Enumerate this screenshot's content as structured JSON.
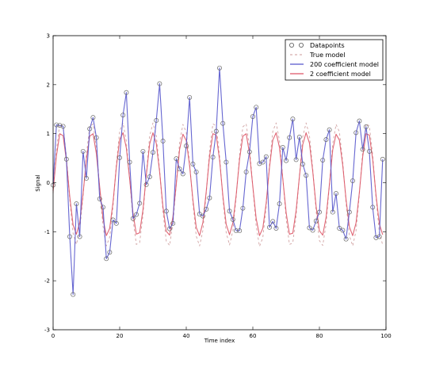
{
  "chart_data": {
    "type": "line",
    "title": "",
    "xlabel": "Time index",
    "ylabel": "Signal",
    "xlim": [
      0,
      100
    ],
    "ylim": [
      -3,
      3
    ],
    "xticks": [
      0,
      20,
      40,
      60,
      80,
      100
    ],
    "yticks": [
      -3,
      -2,
      -1,
      0,
      1,
      2,
      3
    ],
    "grid": false,
    "legend_position": "top-right",
    "colors": {
      "datapoints": "#666666",
      "true_model": "#cc9999",
      "coef200": "#5555cc",
      "coef2": "#dd5566"
    },
    "series": [
      {
        "name": "Datapoints",
        "style": "markers",
        "x": [
          0,
          1,
          2,
          3,
          4,
          5,
          6,
          7,
          8,
          9,
          10,
          11,
          12,
          13,
          14,
          15,
          16,
          17,
          18,
          19,
          20,
          21,
          22,
          23,
          24,
          25,
          26,
          27,
          28,
          29,
          30,
          31,
          32,
          33,
          34,
          35,
          36,
          37,
          38,
          39,
          40,
          41,
          42,
          43,
          44,
          45,
          46,
          47,
          48,
          49,
          50,
          51,
          52,
          53,
          54,
          55,
          56,
          57,
          58,
          59,
          60,
          61,
          62,
          63,
          64,
          65,
          66,
          67,
          68,
          69,
          70,
          71,
          72,
          73,
          74,
          75,
          76,
          77,
          78,
          79,
          80,
          81,
          82,
          83,
          84,
          85,
          86,
          87,
          88,
          89,
          90,
          91,
          92,
          93,
          94,
          95,
          96,
          97,
          98,
          99
        ],
        "y": [
          -0.05,
          1.18,
          1.17,
          1.15,
          0.48,
          -1.1,
          -2.28,
          -0.43,
          -1.1,
          0.64,
          0.09,
          1.1,
          1.33,
          0.92,
          -0.33,
          -0.5,
          -1.55,
          -1.42,
          -0.76,
          -0.83,
          0.51,
          1.38,
          1.84,
          0.42,
          -0.73,
          -0.65,
          -0.42,
          0.64,
          -0.04,
          0.12,
          0.62,
          1.27,
          2.02,
          0.85,
          -0.58,
          -0.94,
          -0.83,
          0.49,
          0.28,
          0.18,
          0.75,
          1.74,
          0.38,
          0.22,
          -0.64,
          -0.68,
          -0.54,
          -0.31,
          0.52,
          1.05,
          2.34,
          1.21,
          0.42,
          -0.58,
          -0.75,
          -0.98,
          -0.98,
          -0.52,
          0.22,
          0.63,
          1.35,
          1.54,
          0.39,
          0.42,
          0.53,
          -0.91,
          -0.79,
          -0.93,
          -0.43,
          0.72,
          0.45,
          0.92,
          1.3,
          0.47,
          0.93,
          0.38,
          0.15,
          -0.92,
          -0.97,
          -0.78,
          -0.6,
          0.46,
          0.88,
          1.08,
          -0.6,
          -0.22,
          -0.93,
          -0.97,
          -1.15,
          -0.6,
          0.04,
          1.02,
          1.26,
          0.68,
          1.14,
          0.64,
          -0.5,
          -1.12,
          -1.1,
          0.48
        ]
      },
      {
        "name": "True model",
        "style": "dashed",
        "x": [
          0,
          1,
          2,
          3,
          4,
          5,
          6,
          7,
          8,
          9,
          10,
          11,
          12,
          13,
          14,
          15,
          16,
          17,
          18,
          19,
          20,
          21,
          22,
          23,
          24,
          25,
          26,
          27,
          28,
          29,
          30,
          31,
          32,
          33,
          34,
          35,
          36,
          37,
          38,
          39,
          40,
          41,
          42,
          43,
          44,
          45,
          46,
          47,
          48,
          49,
          50,
          51,
          52,
          53,
          54,
          55,
          56,
          57,
          58,
          59,
          60,
          61,
          62,
          63,
          64,
          65,
          66,
          67,
          68,
          69,
          70,
          71,
          72,
          73,
          74,
          75,
          76,
          77,
          78,
          79,
          80,
          81,
          82,
          83,
          84,
          85,
          86,
          87,
          88,
          89,
          90,
          91,
          92,
          93,
          94,
          95,
          96,
          97,
          98,
          99
        ],
        "y": [
          -0.22,
          0.66,
          1.2,
          1.15,
          0.54,
          -0.34,
          -1.03,
          -1.26,
          -0.97,
          -0.28,
          0.57,
          1.14,
          1.2,
          0.71,
          -0.11,
          -0.89,
          -1.29,
          -1.11,
          -0.48,
          0.38,
          1.06,
          1.22,
          0.85,
          0.08,
          -0.74,
          -1.26,
          -1.22,
          -0.66,
          0.18,
          0.95,
          1.22,
          0.96,
          0.26,
          -0.59,
          -1.19,
          -1.28,
          -0.83,
          -0.03,
          0.82,
          1.19,
          1.03,
          0.42,
          -0.42,
          -1.09,
          -1.29,
          -0.97,
          -0.22,
          0.65,
          1.2,
          1.16,
          0.56,
          -0.32,
          -1.02,
          -1.27,
          -0.98,
          -0.3,
          0.56,
          1.14,
          1.2,
          0.72,
          -0.09,
          -0.88,
          -1.3,
          -1.12,
          -0.5,
          0.37,
          1.05,
          1.22,
          0.86,
          0.1,
          -0.73,
          -1.26,
          -1.23,
          -0.68,
          0.16,
          0.94,
          1.22,
          0.97,
          0.28,
          -0.57,
          -1.18,
          -1.28,
          -0.85,
          -0.05,
          0.8,
          1.19,
          1.04,
          0.43,
          -0.41,
          -1.08,
          -1.29,
          -0.98,
          -0.24,
          0.64,
          1.2,
          1.16,
          0.57,
          -0.3,
          -1.01,
          -1.27
        ]
      },
      {
        "name": "200 coefficient model",
        "style": "solid",
        "x": [
          0,
          1,
          2,
          3,
          4,
          5,
          6,
          7,
          8,
          9,
          10,
          11,
          12,
          13,
          14,
          15,
          16,
          17,
          18,
          19,
          20,
          21,
          22,
          23,
          24,
          25,
          26,
          27,
          28,
          29,
          30,
          31,
          32,
          33,
          34,
          35,
          36,
          37,
          38,
          39,
          40,
          41,
          42,
          43,
          44,
          45,
          46,
          47,
          48,
          49,
          50,
          51,
          52,
          53,
          54,
          55,
          56,
          57,
          58,
          59,
          60,
          61,
          62,
          63,
          64,
          65,
          66,
          67,
          68,
          69,
          70,
          71,
          72,
          73,
          74,
          75,
          76,
          77,
          78,
          79,
          80,
          81,
          82,
          83,
          84,
          85,
          86,
          87,
          88,
          89,
          90,
          91,
          92,
          93,
          94,
          95,
          96,
          97,
          98,
          99
        ],
        "y": [
          -0.05,
          1.18,
          1.17,
          1.15,
          0.48,
          -1.1,
          -2.28,
          -0.43,
          -1.1,
          0.64,
          0.09,
          1.1,
          1.33,
          0.92,
          -0.33,
          -0.5,
          -1.55,
          -1.42,
          -0.76,
          -0.83,
          0.51,
          1.38,
          1.84,
          0.42,
          -0.73,
          -0.65,
          -0.42,
          0.64,
          -0.04,
          0.12,
          0.62,
          1.27,
          2.02,
          0.85,
          -0.58,
          -0.94,
          -0.83,
          0.49,
          0.28,
          0.18,
          0.75,
          1.74,
          0.38,
          0.22,
          -0.64,
          -0.68,
          -0.54,
          -0.31,
          0.52,
          1.05,
          2.34,
          1.21,
          0.42,
          -0.58,
          -0.75,
          -0.98,
          -0.98,
          -0.52,
          0.22,
          0.63,
          1.35,
          1.54,
          0.39,
          0.42,
          0.53,
          -0.91,
          -0.79,
          -0.93,
          -0.43,
          0.72,
          0.45,
          0.92,
          1.3,
          0.47,
          0.93,
          0.38,
          0.15,
          -0.92,
          -0.97,
          -0.78,
          -0.6,
          0.46,
          0.88,
          1.08,
          -0.6,
          -0.22,
          -0.93,
          -0.97,
          -1.15,
          -0.6,
          0.04,
          1.02,
          1.26,
          0.68,
          1.14,
          0.64,
          -0.5,
          -1.12,
          -1.1,
          0.48
        ]
      },
      {
        "name": "2 coefficient model",
        "style": "solid",
        "x": [
          0,
          1,
          2,
          3,
          4,
          5,
          6,
          7,
          8,
          9,
          10,
          11,
          12,
          13,
          14,
          15,
          16,
          17,
          18,
          19,
          20,
          21,
          22,
          23,
          24,
          25,
          26,
          27,
          28,
          29,
          30,
          31,
          32,
          33,
          34,
          35,
          36,
          37,
          38,
          39,
          40,
          41,
          42,
          43,
          44,
          45,
          46,
          47,
          48,
          49,
          50,
          51,
          52,
          53,
          54,
          55,
          56,
          57,
          58,
          59,
          60,
          61,
          62,
          63,
          64,
          65,
          66,
          67,
          68,
          69,
          70,
          71,
          72,
          73,
          74,
          75,
          76,
          77,
          78,
          79,
          80,
          81,
          82,
          83,
          84,
          85,
          86,
          87,
          88,
          89,
          90,
          91,
          92,
          93,
          94,
          95,
          96,
          97,
          98,
          99
        ],
        "y": [
          -0.17,
          0.55,
          1.0,
          0.96,
          0.45,
          -0.28,
          -0.86,
          -1.05,
          -0.81,
          -0.23,
          0.48,
          0.95,
          1.0,
          0.59,
          -0.09,
          -0.74,
          -1.08,
          -0.93,
          -0.4,
          0.32,
          0.88,
          1.02,
          0.71,
          0.07,
          -0.62,
          -1.05,
          -1.02,
          -0.55,
          0.15,
          0.79,
          1.02,
          0.8,
          0.22,
          -0.49,
          -0.99,
          -1.07,
          -0.69,
          -0.03,
          0.68,
          0.99,
          0.86,
          0.35,
          -0.35,
          -0.91,
          -1.08,
          -0.81,
          -0.18,
          0.54,
          1.0,
          0.97,
          0.47,
          -0.27,
          -0.85,
          -1.06,
          -0.82,
          -0.25,
          0.47,
          0.95,
          1.0,
          0.6,
          -0.08,
          -0.73,
          -1.08,
          -0.93,
          -0.42,
          0.31,
          0.87,
          1.02,
          0.72,
          0.08,
          -0.61,
          -1.05,
          -1.03,
          -0.57,
          0.13,
          0.78,
          1.02,
          0.81,
          0.23,
          -0.48,
          -0.98,
          -1.07,
          -0.71,
          -0.04,
          0.67,
          0.99,
          0.87,
          0.36,
          -0.34,
          -0.9,
          -1.08,
          -0.82,
          -0.2,
          0.53,
          1.0,
          0.97,
          0.48,
          -0.25,
          -0.84,
          -1.06
        ]
      }
    ]
  }
}
